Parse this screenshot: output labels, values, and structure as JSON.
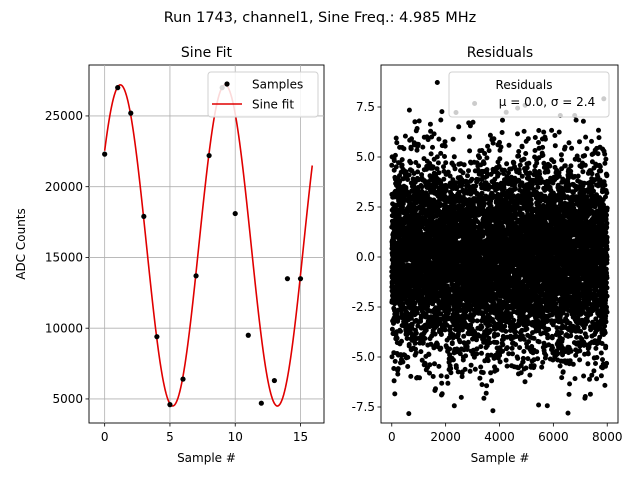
{
  "figure": {
    "suptitle": "Run 1743, channel1, Sine Freq.: 4.985 MHz"
  },
  "chart_data": [
    {
      "type": "line",
      "title": "Sine Fit",
      "xlabel": "Sample #",
      "ylabel": "ADC Counts",
      "xlim": [
        -1.2,
        16.8
      ],
      "ylim": [
        3300,
        28600
      ],
      "xticks": [
        0,
        5,
        10,
        15
      ],
      "yticks": [
        5000,
        10000,
        15000,
        20000,
        25000
      ],
      "grid": true,
      "legend": {
        "placement": "upper right",
        "entries": [
          "Samples",
          "Sine fit"
        ]
      },
      "series": [
        {
          "name": "Samples",
          "kind": "scatter",
          "color": "#000000",
          "x": [
            0,
            1,
            2,
            3,
            4,
            5,
            6,
            7,
            8,
            9,
            10,
            11,
            12,
            13,
            14,
            15
          ],
          "y": [
            22300,
            27000,
            25200,
            17900,
            9400,
            4600,
            6400,
            13700,
            22200,
            27000,
            18100,
            9500,
            4700,
            6300,
            13500,
            13500
          ]
        },
        {
          "name": "Sine fit",
          "kind": "line",
          "color": "#e00000",
          "x_range": [
            0,
            15.9
          ],
          "offset": 15850,
          "amplitude": 11350,
          "period": 8.02,
          "peak_x": 1.2
        }
      ]
    },
    {
      "type": "scatter",
      "title": "Residuals",
      "xlabel": "Sample #",
      "ylabel": "",
      "xlim": [
        -400,
        8400
      ],
      "ylim": [
        -8.3,
        9.6
      ],
      "xticks": [
        0,
        2000,
        4000,
        6000,
        8000
      ],
      "yticks": [
        -7.5,
        -5.0,
        -2.5,
        0.0,
        2.5,
        5.0,
        7.5
      ],
      "grid": false,
      "legend": {
        "placement": "upper right",
        "entries": [
          "Residuals",
          "μ = 0.0, σ = 2.4"
        ]
      },
      "series": [
        {
          "name": "Residuals",
          "color": "#000000",
          "n_points": 8000,
          "mean": 0.0,
          "std": 2.4,
          "range_clip": [
            -7.9,
            8.8
          ]
        }
      ]
    }
  ]
}
